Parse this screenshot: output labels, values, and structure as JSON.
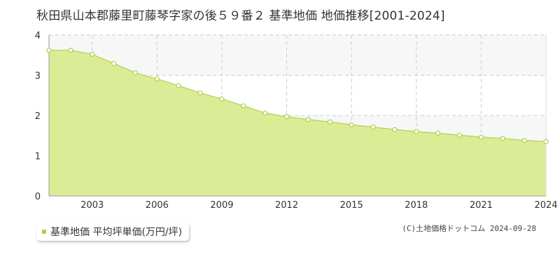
{
  "title": "秋田県山本郡藤里町藤琴字家の後５９番２ 基準地価 地価推移[2001-2024]",
  "legend_label": "基準地価 平均坪単価(万円/坪)",
  "credit": "(C)土地価格ドットコム 2024-09-28",
  "colors": {
    "fill": "#dcec96",
    "line": "#b8d860",
    "marker_stroke": "#a8d24a",
    "grid": "#cccccc",
    "band": "#f7f7f7"
  },
  "chart_data": {
    "type": "area",
    "x": [
      2001,
      2002,
      2003,
      2004,
      2005,
      2006,
      2007,
      2008,
      2009,
      2010,
      2011,
      2012,
      2013,
      2014,
      2015,
      2016,
      2017,
      2018,
      2019,
      2020,
      2021,
      2022,
      2023,
      2024
    ],
    "values": [
      3.62,
      3.62,
      3.52,
      3.29,
      3.06,
      2.91,
      2.74,
      2.56,
      2.41,
      2.24,
      2.06,
      1.97,
      1.9,
      1.84,
      1.77,
      1.71,
      1.65,
      1.6,
      1.56,
      1.51,
      1.46,
      1.43,
      1.38,
      1.35
    ],
    "xlim": [
      2001,
      2024
    ],
    "ylim": [
      0,
      4
    ],
    "y_ticks": [
      "0",
      "1",
      "2",
      "3",
      "4"
    ],
    "x_ticks": [
      "2003",
      "2006",
      "2009",
      "2012",
      "2015",
      "2018",
      "2021",
      "2024"
    ],
    "grid": true
  }
}
